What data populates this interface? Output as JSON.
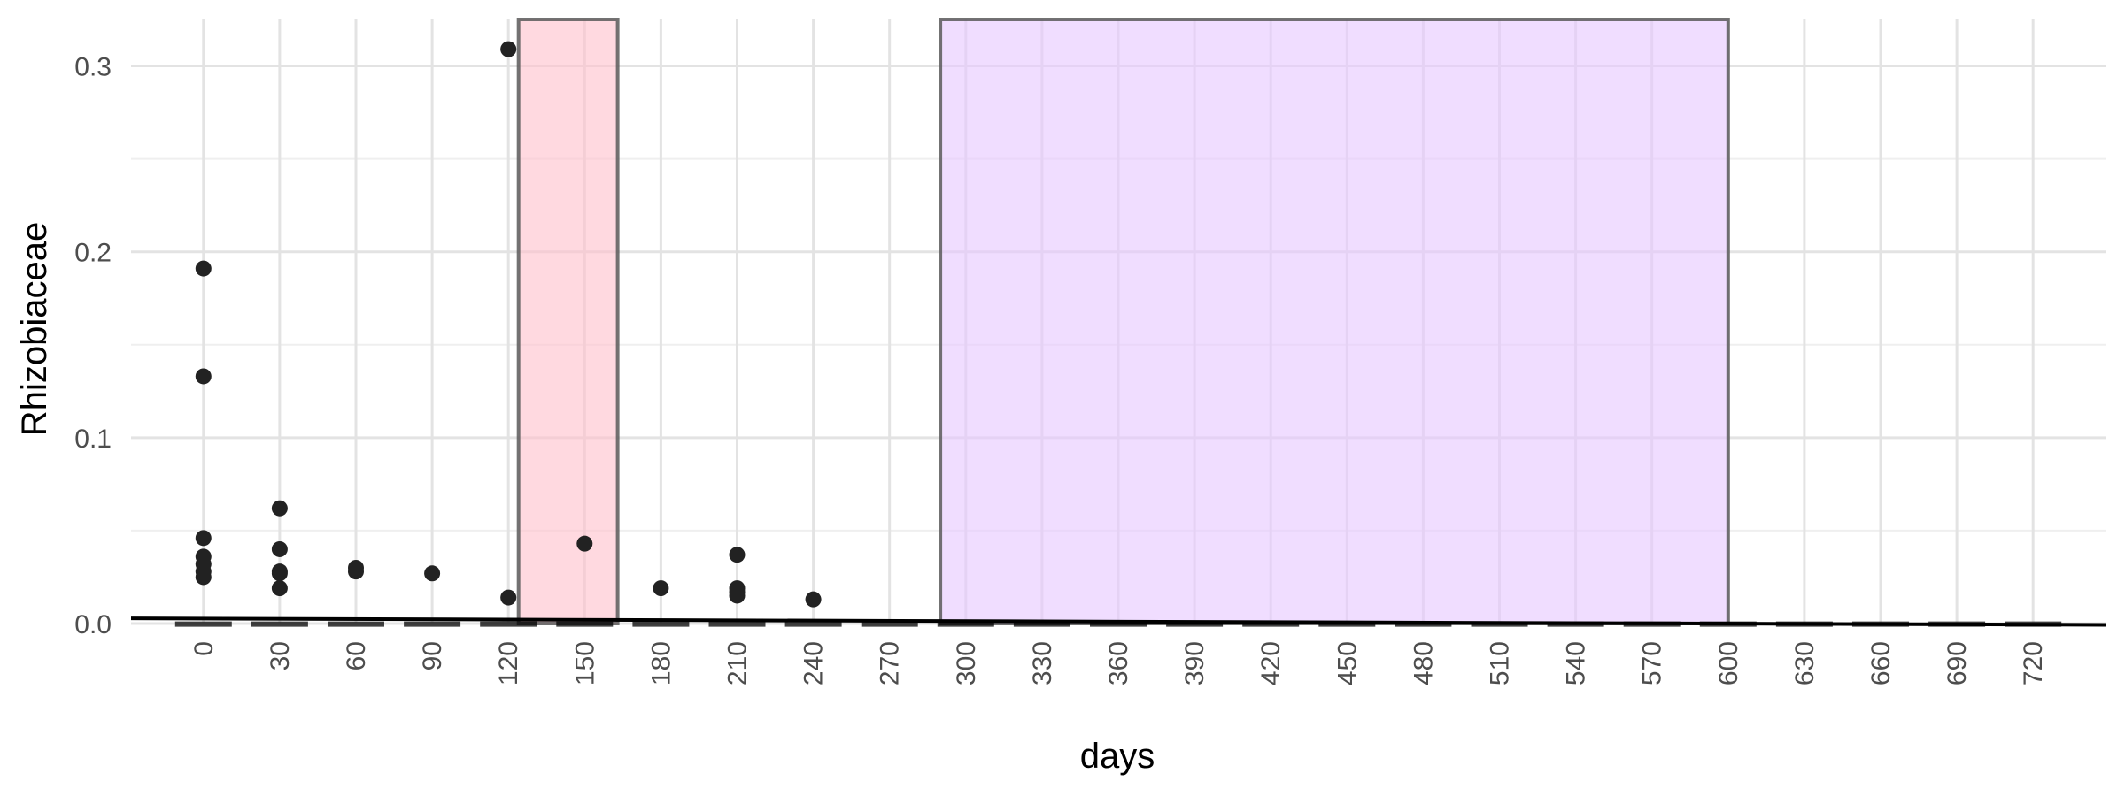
{
  "chart_data": {
    "type": "scatter",
    "xlabel": "days",
    "ylabel": "Rhizobiaceae",
    "x_ticks": [
      0,
      30,
      60,
      90,
      120,
      150,
      180,
      210,
      240,
      270,
      300,
      330,
      360,
      390,
      420,
      450,
      480,
      510,
      540,
      570,
      600,
      630,
      660,
      690,
      720
    ],
    "y_ticks": [
      0.0,
      0.1,
      0.2,
      0.3
    ],
    "y_tick_labels": [
      "0.0",
      "0.1",
      "0.2",
      "0.3"
    ],
    "xlim": [
      -28.5,
      748.5
    ],
    "ylim": [
      0.0,
      0.325
    ],
    "grid": true,
    "shaded_regions": [
      {
        "x_start": 124,
        "x_end": 163,
        "color": "#ffc0cb"
      },
      {
        "x_start": 290,
        "x_end": 600,
        "color": "#e6c6ff"
      }
    ],
    "trend_line": {
      "x": [
        -28.5,
        748.5
      ],
      "y": [
        0.0028,
        -0.0007
      ]
    },
    "baseline_dashes": {
      "x": [
        0,
        30,
        60,
        90,
        120,
        150,
        180,
        210,
        240,
        270,
        300,
        330,
        360,
        390,
        420,
        450,
        480,
        510,
        540,
        570,
        600,
        630,
        660,
        690,
        720
      ],
      "y": -0.0003
    },
    "points": [
      {
        "x": 0,
        "y": 0.191
      },
      {
        "x": 0,
        "y": 0.133
      },
      {
        "x": 0,
        "y": 0.046
      },
      {
        "x": 0,
        "y": 0.036
      },
      {
        "x": 0,
        "y": 0.032
      },
      {
        "x": 0,
        "y": 0.028
      },
      {
        "x": 0,
        "y": 0.025
      },
      {
        "x": 30,
        "y": 0.062
      },
      {
        "x": 30,
        "y": 0.04
      },
      {
        "x": 30,
        "y": 0.028
      },
      {
        "x": 30,
        "y": 0.027
      },
      {
        "x": 30,
        "y": 0.019
      },
      {
        "x": 60,
        "y": 0.03
      },
      {
        "x": 60,
        "y": 0.028
      },
      {
        "x": 90,
        "y": 0.027
      },
      {
        "x": 120,
        "y": 0.309
      },
      {
        "x": 120,
        "y": 0.014
      },
      {
        "x": 150,
        "y": 0.043
      },
      {
        "x": 180,
        "y": 0.019
      },
      {
        "x": 210,
        "y": 0.037
      },
      {
        "x": 210,
        "y": 0.019
      },
      {
        "x": 210,
        "y": 0.017
      },
      {
        "x": 210,
        "y": 0.015
      },
      {
        "x": 240,
        "y": 0.013
      }
    ],
    "point_color": "#222222"
  }
}
